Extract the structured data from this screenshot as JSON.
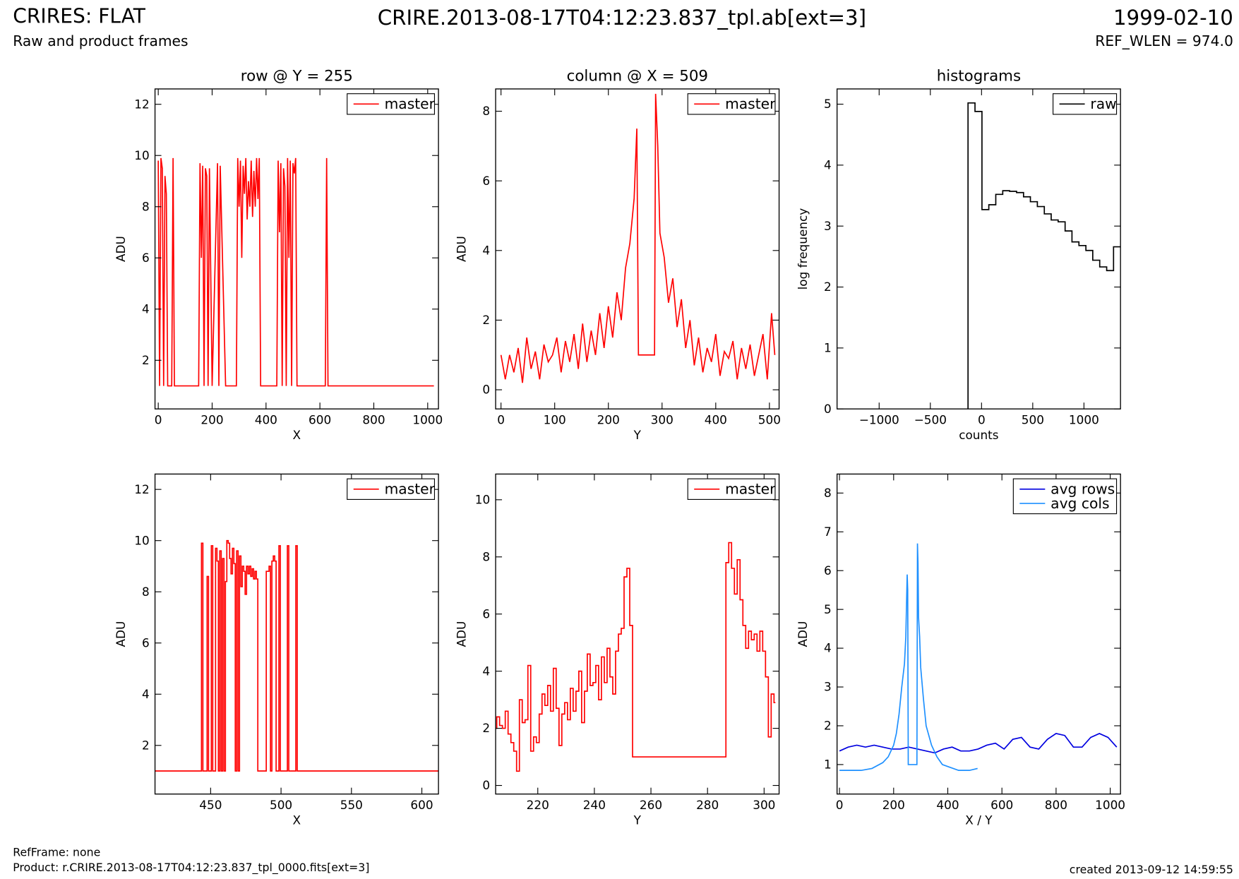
{
  "header": {
    "title": "CRIRES: FLAT",
    "subtitle": "Raw and product frames",
    "file": "CRIRE.2013-08-17T04:12:23.837_tpl.ab[ext=3]",
    "date": "1999-02-10",
    "ref_wlen": "REF_WLEN = 974.0"
  },
  "footer": {
    "ref_frame": "RefFrame: none",
    "product": "Product: r.CRIRE.2013-08-17T04:12:23.837_tpl_0000.fits[ext=3]",
    "created": "created 2013-09-12 14:59:55"
  },
  "chart_data": [
    {
      "type": "line",
      "title": "row @ Y = 255",
      "xlabel": "X",
      "ylabel": "ADU",
      "legend": "upper right",
      "drawstyle": "default",
      "xlim": [
        -12,
        1040
      ],
      "ylim": [
        0.1,
        12.6
      ],
      "xticks": [
        0,
        200,
        400,
        600,
        800,
        1000
      ],
      "yticks": [
        2,
        4,
        6,
        8,
        10,
        12
      ],
      "series": [
        {
          "name": "master",
          "color": "#ff0000",
          "x": [
            0,
            5,
            10,
            15,
            20,
            25,
            30,
            35,
            40,
            45,
            50,
            55,
            60,
            100,
            150,
            155,
            160,
            165,
            170,
            175,
            180,
            185,
            190,
            200,
            220,
            225,
            230,
            250,
            290,
            295,
            300,
            305,
            310,
            315,
            320,
            325,
            330,
            335,
            340,
            345,
            350,
            355,
            360,
            365,
            370,
            375,
            380,
            400,
            440,
            445,
            450,
            455,
            460,
            465,
            470,
            475,
            480,
            485,
            490,
            495,
            500,
            505,
            510,
            515,
            520,
            600,
            620,
            625,
            630,
            700,
            800,
            900,
            1023
          ],
          "values": [
            9.8,
            1,
            9.9,
            9.5,
            1,
            9.2,
            8.5,
            1,
            1,
            1,
            1,
            9.9,
            1,
            1,
            1,
            9.7,
            6,
            9.6,
            1,
            9.5,
            9.2,
            1,
            9.5,
            1,
            9.7,
            1,
            9.6,
            1,
            1,
            9.9,
            8,
            9.8,
            6,
            9.6,
            8.5,
            9.9,
            7.5,
            9,
            8,
            9.8,
            7.6,
            9.4,
            8,
            9.9,
            8.3,
            9.9,
            1,
            1,
            1,
            9.8,
            7,
            9.7,
            1,
            9.5,
            8.8,
            1,
            9.9,
            6,
            9.8,
            1,
            9.7,
            9.3,
            9.9,
            1,
            1,
            1,
            1,
            9.9,
            1,
            1,
            1,
            1,
            1
          ]
        }
      ]
    },
    {
      "type": "line",
      "title": "column @ X = 509",
      "xlabel": "Y",
      "ylabel": "ADU",
      "legend": "upper right",
      "drawstyle": "default",
      "xlim": [
        -10,
        518
      ],
      "ylim": [
        -0.55,
        8.64
      ],
      "xticks": [
        0,
        100,
        200,
        300,
        400,
        500
      ],
      "yticks": [
        0,
        2,
        4,
        6,
        8
      ],
      "series": [
        {
          "name": "master",
          "color": "#ff0000",
          "x": [
            0,
            8,
            16,
            24,
            32,
            40,
            48,
            56,
            64,
            72,
            80,
            88,
            96,
            104,
            112,
            120,
            128,
            136,
            144,
            152,
            160,
            168,
            176,
            184,
            192,
            200,
            208,
            216,
            224,
            232,
            240,
            248,
            253,
            256,
            264,
            272,
            280,
            286,
            288,
            292,
            296,
            304,
            312,
            320,
            328,
            336,
            344,
            352,
            360,
            368,
            376,
            384,
            392,
            400,
            408,
            416,
            424,
            432,
            440,
            448,
            456,
            464,
            472,
            480,
            488,
            496,
            504,
            510
          ],
          "values": [
            1.0,
            0.3,
            1.0,
            0.5,
            1.2,
            0.2,
            1.5,
            0.6,
            1.1,
            0.3,
            1.3,
            0.8,
            1.0,
            1.5,
            0.5,
            1.4,
            0.8,
            1.6,
            0.6,
            1.9,
            0.8,
            1.7,
            1.0,
            2.2,
            1.2,
            2.4,
            1.5,
            2.8,
            2.0,
            3.5,
            4.2,
            5.5,
            7.5,
            1.0,
            1.0,
            1.0,
            1.0,
            1.0,
            8.5,
            7.0,
            4.5,
            3.8,
            2.5,
            3.2,
            1.8,
            2.6,
            1.2,
            2.0,
            0.7,
            1.5,
            0.5,
            1.2,
            0.8,
            1.6,
            0.4,
            1.1,
            0.9,
            1.4,
            0.3,
            1.2,
            0.6,
            1.3,
            0.4,
            1.0,
            1.6,
            0.3,
            2.2,
            1.0
          ]
        }
      ]
    },
    {
      "type": "histogram",
      "title": "histograms",
      "xlabel": "counts",
      "ylabel": "log frequency",
      "legend": "upper right",
      "xlim": [
        -1411,
        1357
      ],
      "ylim": [
        0,
        5.25
      ],
      "xticks": [
        {
          "value": -1000,
          "label": "−1000"
        },
        {
          "value": -500,
          "label": "−500"
        },
        0,
        500,
        1000
      ],
      "yticks": [
        0,
        1,
        2,
        3,
        4,
        5
      ],
      "bins": [
        -132,
        -64,
        4,
        71,
        139,
        207,
        274,
        342,
        410,
        477,
        545,
        613,
        680,
        748,
        816,
        883,
        951,
        1019,
        1086,
        1154,
        1222,
        1289,
        1357
      ],
      "series": [
        {
          "name": "raw",
          "color": "#000000",
          "values": [
            5.02,
            4.88,
            3.27,
            3.35,
            3.52,
            3.58,
            3.57,
            3.55,
            3.48,
            3.4,
            3.32,
            3.2,
            3.1,
            3.07,
            2.92,
            2.74,
            2.68,
            2.6,
            2.44,
            2.33,
            2.27,
            2.66
          ]
        }
      ]
    },
    {
      "type": "line",
      "xlabel": "X",
      "ylabel": "ADU",
      "legend": "upper right",
      "drawstyle": "steps-mid",
      "xlim": [
        410.5,
        611.8
      ],
      "ylim": [
        0.1,
        12.6
      ],
      "xticks": [
        450,
        500,
        550,
        600
      ],
      "yticks": [
        2,
        4,
        6,
        8,
        10,
        12
      ],
      "series": [
        {
          "name": "master",
          "color": "#ff0000",
          "x": [
            410,
            441,
            442,
            443,
            444,
            445,
            446,
            447,
            448,
            449,
            450,
            451,
            452,
            453,
            454,
            455,
            456,
            457,
            458,
            459,
            460,
            461,
            462,
            463,
            464,
            465,
            466,
            467,
            468,
            469,
            470,
            471,
            472,
            473,
            474,
            475,
            476,
            477,
            478,
            479,
            480,
            481,
            482,
            483,
            484,
            485,
            486,
            487,
            488,
            489,
            490,
            491,
            492,
            493,
            494,
            495,
            496,
            497,
            498,
            499,
            500,
            501,
            502,
            503,
            504,
            505,
            506,
            507,
            508,
            509,
            510,
            511,
            512,
            513,
            514,
            612
          ],
          "values": [
            1,
            1,
            1,
            1,
            9.9,
            1,
            1,
            1,
            8.6,
            1,
            1,
            9.8,
            1,
            1,
            9.7,
            9.2,
            1,
            9.6,
            1,
            9.3,
            1,
            8.4,
            10,
            9.9,
            9.3,
            8.7,
            9.7,
            9.1,
            1,
            9.6,
            1,
            9.4,
            8.2,
            9.0,
            8.8,
            7.9,
            9.0,
            8.7,
            9.0,
            8.6,
            8.9,
            8.5,
            8.8,
            8.5,
            1,
            1,
            1,
            1,
            1,
            1,
            8.8,
            8.8,
            9.0,
            1,
            9.2,
            9.4,
            9.2,
            1,
            1,
            9.8,
            1,
            1,
            1,
            1,
            1,
            9.8,
            1,
            1,
            1,
            1,
            1,
            9.8,
            1,
            1,
            1,
            1
          ]
        }
      ]
    },
    {
      "type": "line",
      "xlabel": "Y",
      "ylabel": "ADU",
      "legend": "upper right",
      "drawstyle": "steps-mid",
      "xlim": [
        205.1,
        305.3
      ],
      "ylim": [
        -0.3,
        10.9
      ],
      "xticks": [
        220,
        240,
        260,
        280,
        300
      ],
      "yticks": [
        0,
        2,
        4,
        6,
        8,
        10
      ],
      "series": [
        {
          "name": "master",
          "color": "#ff0000",
          "x": [
            205,
            206,
            207,
            208,
            209,
            210,
            211,
            212,
            213,
            214,
            215,
            216,
            217,
            218,
            219,
            220,
            221,
            222,
            223,
            224,
            225,
            226,
            227,
            228,
            229,
            230,
            231,
            232,
            233,
            234,
            235,
            236,
            237,
            238,
            239,
            240,
            241,
            242,
            243,
            244,
            245,
            246,
            247,
            248,
            249,
            250,
            251,
            252,
            253,
            254,
            286,
            287,
            288,
            289,
            290,
            291,
            292,
            293,
            294,
            295,
            296,
            297,
            298,
            299,
            300,
            301,
            302,
            303,
            304
          ],
          "values": [
            2.0,
            2.4,
            2.1,
            2.0,
            2.6,
            1.8,
            1.5,
            1.2,
            0.5,
            3.0,
            2.2,
            2.3,
            4.2,
            1.2,
            1.7,
            1.5,
            2.5,
            3.2,
            2.8,
            3.5,
            2.6,
            4.1,
            2.7,
            1.4,
            2.5,
            2.9,
            2.3,
            3.4,
            2.6,
            3.3,
            4.0,
            2.2,
            3.3,
            4.6,
            3.5,
            3.6,
            4.2,
            3.0,
            4.5,
            3.6,
            4.8,
            3.8,
            3.2,
            4.7,
            5.3,
            5.5,
            7.3,
            7.6,
            5.6,
            1,
            1,
            7.8,
            8.5,
            7.6,
            6.7,
            7.9,
            6.5,
            5.6,
            4.8,
            5.4,
            5.1,
            5.3,
            4.7,
            5.4,
            4.7,
            3.8,
            1.7,
            3.2,
            2.9
          ]
        }
      ]
    },
    {
      "type": "line",
      "xlabel": "X / Y",
      "ylabel": "ADU",
      "legend": "upper right",
      "drawstyle": "default",
      "xlim": [
        -9,
        1038
      ],
      "ylim": [
        0.24,
        8.49
      ],
      "xticks": [
        0,
        200,
        400,
        600,
        800,
        1000
      ],
      "yticks": [
        1,
        2,
        3,
        4,
        5,
        6,
        7,
        8
      ],
      "series": [
        {
          "name": "avg rows",
          "color": "#0000e0",
          "x": [
            0,
            32,
            64,
            96,
            128,
            160,
            192,
            224,
            256,
            288,
            320,
            352,
            384,
            416,
            448,
            480,
            512,
            544,
            576,
            608,
            640,
            672,
            704,
            736,
            768,
            800,
            832,
            864,
            896,
            928,
            960,
            992,
            1024
          ],
          "values": [
            1.35,
            1.45,
            1.5,
            1.45,
            1.5,
            1.45,
            1.4,
            1.4,
            1.45,
            1.4,
            1.35,
            1.3,
            1.4,
            1.45,
            1.35,
            1.35,
            1.4,
            1.5,
            1.55,
            1.4,
            1.65,
            1.7,
            1.45,
            1.4,
            1.65,
            1.8,
            1.75,
            1.45,
            1.45,
            1.7,
            1.8,
            1.7,
            1.45
          ]
        },
        {
          "name": "avg cols",
          "color": "#1e90ff",
          "x": [
            0,
            40,
            80,
            120,
            160,
            180,
            200,
            210,
            220,
            230,
            240,
            245,
            250,
            252,
            254,
            256,
            286,
            288,
            290,
            292,
            296,
            300,
            310,
            320,
            340,
            360,
            380,
            400,
            440,
            480,
            510
          ],
          "values": [
            0.85,
            0.85,
            0.85,
            0.9,
            1.05,
            1.2,
            1.5,
            1.8,
            2.3,
            3.0,
            3.6,
            4.3,
            5.9,
            5.5,
            1.0,
            1.0,
            1.0,
            6.7,
            6.2,
            4.8,
            4.3,
            3.5,
            2.7,
            2.0,
            1.5,
            1.2,
            1.0,
            0.95,
            0.85,
            0.85,
            0.9
          ]
        }
      ]
    }
  ]
}
